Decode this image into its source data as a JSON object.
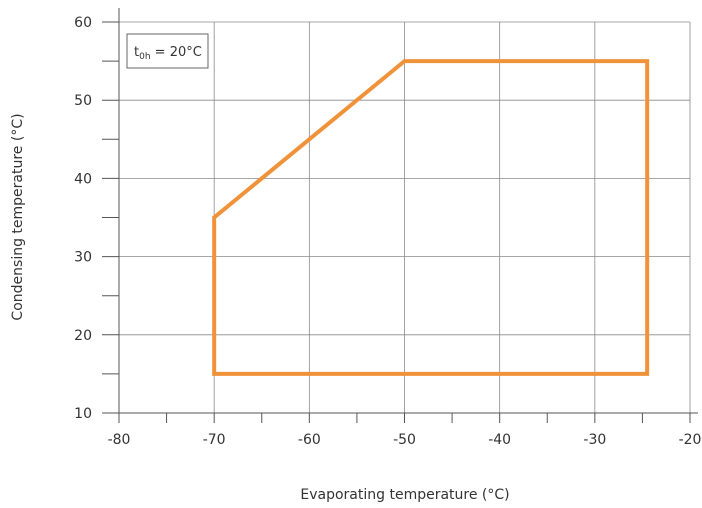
{
  "chart_data": {
    "type": "line",
    "title": "",
    "xlabel": "Evaporating temperature (°C)",
    "ylabel": "Condensing temperature (°C)",
    "xlim": [
      -80,
      -20
    ],
    "ylim": [
      10,
      60
    ],
    "x_ticks": [
      -80,
      -70,
      -60,
      -50,
      -40,
      -30,
      -20
    ],
    "y_ticks": [
      10,
      20,
      30,
      40,
      50,
      60
    ],
    "x_tick_labels": [
      "-80",
      "-70",
      "-60",
      "-50",
      "-40",
      "-30",
      "-20"
    ],
    "y_tick_labels": [
      "10",
      "20",
      "30",
      "40",
      "50",
      "60"
    ],
    "grid": true,
    "annotation": {
      "main": "t",
      "sub": "0h",
      "rest": " = 20°C"
    },
    "series": [
      {
        "color": "#F0923A",
        "closed": true,
        "points": [
          {
            "x": -70,
            "y": 15
          },
          {
            "x": -70,
            "y": 35
          },
          {
            "x": -50,
            "y": 55
          },
          {
            "x": -24.5,
            "y": 55
          },
          {
            "x": -24.5,
            "y": 15
          }
        ]
      }
    ]
  }
}
